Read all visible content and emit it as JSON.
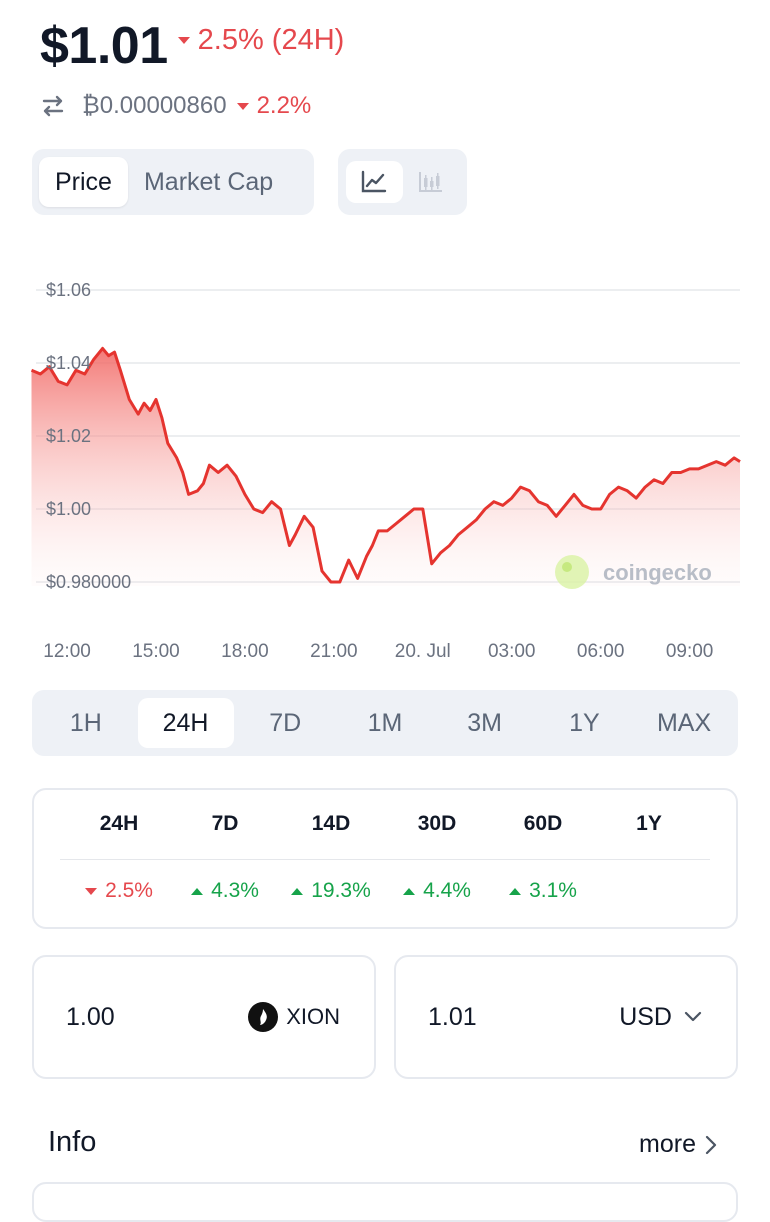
{
  "header": {
    "price": "$1.01",
    "change_24h": "2.5% (24H)",
    "btc_price": "₿0.00000860",
    "btc_change": "2.2%"
  },
  "chart_toggle": {
    "tabs": [
      {
        "label": "Price",
        "active": true
      },
      {
        "label": "Market Cap",
        "active": false
      }
    ],
    "view_icons": [
      {
        "name": "line-chart-icon",
        "active": true
      },
      {
        "name": "candlestick-chart-icon",
        "active": false
      }
    ]
  },
  "chart_data": {
    "type": "area",
    "title": "",
    "xlabel": "",
    "ylabel": "",
    "y_ticks": [
      "$1.06",
      "$1.04",
      "$1.02",
      "$1.00",
      "$0.980000"
    ],
    "y_tick_values": [
      1.06,
      1.04,
      1.02,
      1.0,
      0.98
    ],
    "x_ticks": [
      "12:00",
      "15:00",
      "18:00",
      "21:00",
      "20. Jul",
      "03:00",
      "06:00",
      "09:00"
    ],
    "x_tick_hours": [
      0,
      3,
      6,
      9,
      12,
      15,
      18,
      21
    ],
    "ylim": [
      0.978,
      1.06
    ],
    "xlim_hours": [
      -1.25,
      22.7
    ],
    "grid": true,
    "color": "#e5342f",
    "watermark": "coingecko",
    "series": [
      {
        "x_hours": [
          -1.2,
          -0.9,
          -0.6,
          -0.3,
          0.0,
          0.3,
          0.6,
          0.9,
          1.2,
          1.4,
          1.6,
          1.8,
          2.1,
          2.4,
          2.6,
          2.8,
          3.0,
          3.2,
          3.4,
          3.7,
          3.9,
          4.1,
          4.4,
          4.6,
          4.8,
          5.1,
          5.4,
          5.7,
          6.0,
          6.3,
          6.6,
          6.9,
          7.2,
          7.5,
          7.7,
          8.0,
          8.3,
          8.6,
          8.9,
          9.2,
          9.5,
          9.8,
          10.1,
          10.3,
          10.5,
          10.8,
          11.1,
          11.4,
          11.7,
          12.0,
          12.3,
          12.6,
          12.9,
          13.2,
          13.5,
          13.8,
          14.1,
          14.4,
          14.7,
          15.0,
          15.3,
          15.6,
          15.9,
          16.2,
          16.5,
          16.8,
          17.1,
          17.4,
          17.7,
          18.0,
          18.3,
          18.6,
          18.9,
          19.2,
          19.5,
          19.8,
          20.1,
          20.4,
          20.7,
          21.0,
          21.3,
          21.6,
          21.9,
          22.2,
          22.5,
          22.7
        ],
        "y": [
          1.038,
          1.037,
          1.039,
          1.035,
          1.034,
          1.038,
          1.037,
          1.041,
          1.044,
          1.042,
          1.043,
          1.038,
          1.03,
          1.026,
          1.029,
          1.027,
          1.03,
          1.025,
          1.018,
          1.014,
          1.01,
          1.004,
          1.005,
          1.007,
          1.012,
          1.01,
          1.012,
          1.009,
          1.004,
          1.0,
          0.999,
          1.002,
          1.0,
          0.99,
          0.993,
          0.998,
          0.995,
          0.983,
          0.98,
          0.98,
          0.986,
          0.981,
          0.987,
          0.99,
          0.994,
          0.994,
          0.996,
          0.998,
          1.0,
          1.0,
          0.985,
          0.988,
          0.99,
          0.993,
          0.995,
          0.997,
          1.0,
          1.002,
          1.001,
          1.003,
          1.006,
          1.005,
          1.002,
          1.001,
          0.998,
          1.001,
          1.004,
          1.001,
          1.0,
          1.0,
          1.004,
          1.006,
          1.005,
          1.003,
          1.006,
          1.008,
          1.007,
          1.01,
          1.01,
          1.011,
          1.011,
          1.012,
          1.013,
          1.012,
          1.014,
          1.013
        ]
      }
    ]
  },
  "time_ranges": [
    {
      "label": "1H",
      "active": false
    },
    {
      "label": "24H",
      "active": true
    },
    {
      "label": "7D",
      "active": false
    },
    {
      "label": "1M",
      "active": false
    },
    {
      "label": "3M",
      "active": false
    },
    {
      "label": "1Y",
      "active": false
    },
    {
      "label": "MAX",
      "active": false
    }
  ],
  "performance": {
    "headers": [
      "24H",
      "7D",
      "14D",
      "30D",
      "60D",
      "1Y"
    ],
    "values": [
      {
        "text": "2.5%",
        "dir": "down"
      },
      {
        "text": "4.3%",
        "dir": "up"
      },
      {
        "text": "19.3%",
        "dir": "up"
      },
      {
        "text": "4.4%",
        "dir": "up"
      },
      {
        "text": "3.1%",
        "dir": "up"
      },
      {
        "text": "",
        "dir": "none"
      }
    ]
  },
  "converter": {
    "from_amount": "1.00",
    "from_symbol": "XION",
    "to_amount": "1.01",
    "to_currency": "USD"
  },
  "info": {
    "title": "Info",
    "more_label": "more"
  },
  "colors": {
    "down": "#e5484d",
    "up": "#16a34a",
    "chart_line": "#e5342f"
  }
}
